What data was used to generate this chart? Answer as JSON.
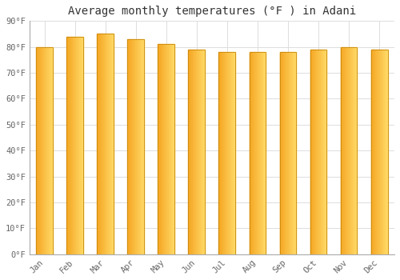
{
  "title": "Average monthly temperatures (°F ) in Adani",
  "months": [
    "Jan",
    "Feb",
    "Mar",
    "Apr",
    "May",
    "Jun",
    "Jul",
    "Aug",
    "Sep",
    "Oct",
    "Nov",
    "Dec"
  ],
  "values": [
    80,
    84,
    85,
    83,
    81,
    79,
    78,
    78,
    78,
    79,
    80,
    79
  ],
  "bar_color_left": "#F5A623",
  "bar_color_right": "#FFD966",
  "bar_edge_color": "#C8880A",
  "ylim": [
    0,
    90
  ],
  "yticks": [
    0,
    10,
    20,
    30,
    40,
    50,
    60,
    70,
    80,
    90
  ],
  "ytick_labels": [
    "0°F",
    "10°F",
    "20°F",
    "30°F",
    "40°F",
    "50°F",
    "60°F",
    "70°F",
    "80°F",
    "90°F"
  ],
  "bg_color": "#FFFFFF",
  "grid_color": "#DDDDDD",
  "title_fontsize": 10,
  "tick_fontsize": 7.5,
  "bar_width": 0.55
}
